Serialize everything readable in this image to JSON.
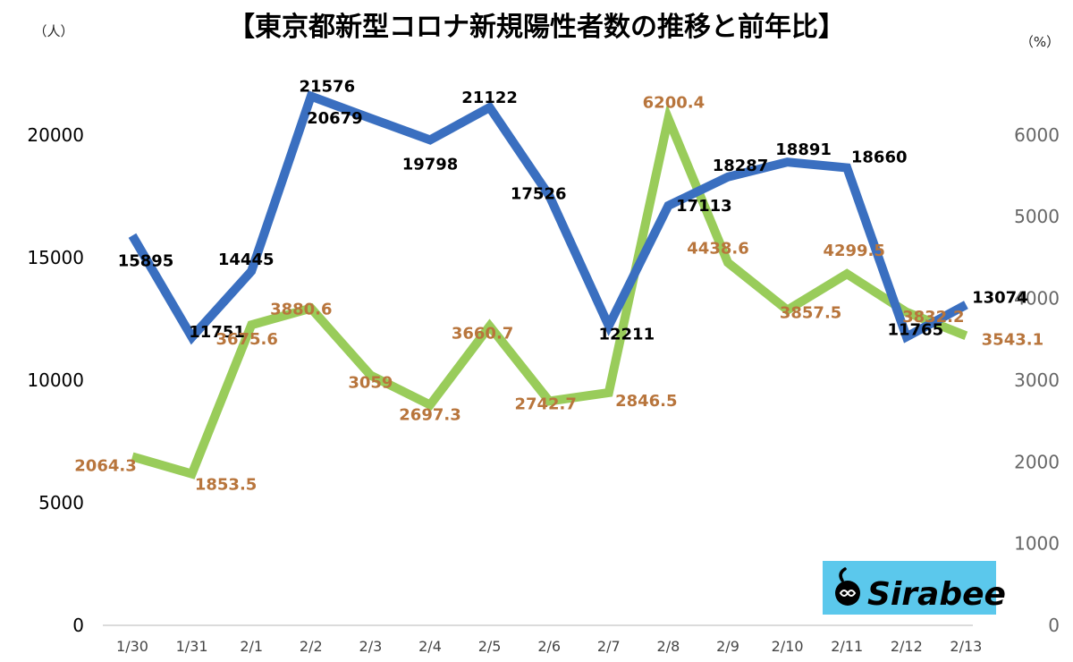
{
  "chart_data": {
    "type": "line",
    "title": "【東京都新型コロナ新規陽性者数の推移と前年比】",
    "y_left_unit": "（人）",
    "y_right_unit": "（%）",
    "categories": [
      "1/30",
      "1/31",
      "2/1",
      "2/2",
      "2/3",
      "2/4",
      "2/5",
      "2/6",
      "2/7",
      "2/8",
      "2/9",
      "2/10",
      "2/11",
      "2/12",
      "2/13"
    ],
    "series": [
      {
        "name": "新規陽性者数",
        "axis": "left",
        "color": "#3a6fc0",
        "values": [
          15895,
          11751,
          14445,
          21576,
          20679,
          19798,
          21122,
          17526,
          12211,
          17113,
          18287,
          18891,
          18660,
          11765,
          13074
        ],
        "labels": [
          "15895",
          "11751",
          "14445",
          "21576",
          "20679",
          "19798",
          "21122",
          "17526",
          "12211",
          "17113",
          "18287",
          "18891",
          "18660",
          "11765",
          "13074"
        ]
      },
      {
        "name": "前年比",
        "axis": "right",
        "color": "#99cc5a",
        "values": [
          2064.3,
          1853.5,
          3675.6,
          3880.6,
          3059,
          2697.3,
          3660.7,
          2742.7,
          2846.5,
          6200.4,
          4438.6,
          3857.5,
          4299.5,
          3832.2,
          3543.1
        ],
        "labels": [
          "2064.3",
          "1853.5",
          "3675.6",
          "3880.6",
          "3059",
          "2697.3",
          "3660.7",
          "2742.7",
          "2846.5",
          "6200.4",
          "4438.6",
          "3857.5",
          "4299.5",
          "3832.2",
          "3543.1"
        ]
      }
    ],
    "y_left": {
      "range": [
        0,
        22000
      ],
      "ticks": [
        "0",
        "5000",
        "10000",
        "15000",
        "20000"
      ],
      "tick_values": [
        0,
        5000,
        10000,
        15000,
        20000
      ]
    },
    "y_right": {
      "range": [
        0,
        6600
      ],
      "ticks": [
        "0",
        "1000",
        "2000",
        "3000",
        "4000",
        "5000",
        "6000"
      ],
      "tick_values": [
        0,
        1000,
        2000,
        3000,
        4000,
        5000,
        6000
      ]
    },
    "grid": false,
    "legend": "none"
  },
  "logo": {
    "text": "Sirabee",
    "background": "#5bc8ec"
  }
}
